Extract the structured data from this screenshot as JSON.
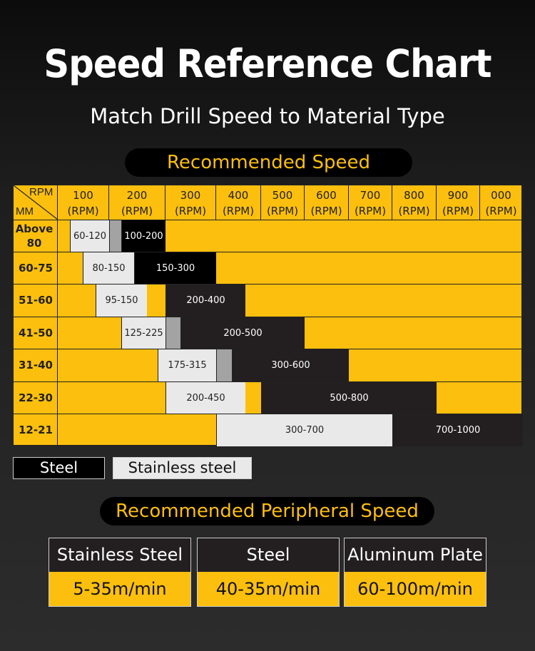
{
  "title": "Speed Reference Chart",
  "subtitle": "Match Drill Speed to Material Type",
  "section1": "Recommended Speed",
  "section2": "Recommended Peripheral Speed",
  "colors": {
    "accent": "#fcbf0d",
    "steel": "#000000",
    "stainless": "#e9e9e9"
  },
  "chart_data": {
    "type": "table",
    "corner": {
      "top": "RPM",
      "bottom": "MM"
    },
    "columns": [
      {
        "v": "100",
        "u": "(RPM)"
      },
      {
        "v": "200",
        "u": "(RPM)"
      },
      {
        "v": "300",
        "u": "(RPM)"
      },
      {
        "v": "400",
        "u": "(RPM)"
      },
      {
        "v": "500",
        "u": "(RPM)"
      },
      {
        "v": "600",
        "u": "(RPM)"
      },
      {
        "v": "700",
        "u": "(RPM)"
      },
      {
        "v": "800",
        "u": "(RPM)"
      },
      {
        "v": "900",
        "u": "(RPM)"
      },
      {
        "v": "000",
        "u": "(RPM)"
      }
    ],
    "rows": [
      {
        "mm": "Above 80",
        "segments": [
          {
            "label": "60-120",
            "material": "stainless"
          },
          {
            "label": "",
            "material": "overlap"
          },
          {
            "label": "100-200",
            "material": "steel"
          }
        ]
      },
      {
        "mm": "60-75",
        "segments": [
          {
            "label": "80-150",
            "material": "stainless"
          },
          {
            "label": "150-300",
            "material": "steel"
          }
        ]
      },
      {
        "mm": "51-60",
        "segments": [
          {
            "label": "95-150",
            "material": "stainless"
          },
          {
            "label": "200-400",
            "material": "steel"
          }
        ]
      },
      {
        "mm": "41-50",
        "segments": [
          {
            "label": "125-225",
            "material": "stainless"
          },
          {
            "label": "",
            "material": "overlap"
          },
          {
            "label": "200-500",
            "material": "steel"
          }
        ]
      },
      {
        "mm": "31-40",
        "segments": [
          {
            "label": "175-315",
            "material": "stainless"
          },
          {
            "label": "",
            "material": "overlap"
          },
          {
            "label": "300-600",
            "material": "steel"
          }
        ]
      },
      {
        "mm": "22-30",
        "segments": [
          {
            "label": "200-450",
            "material": "stainless"
          },
          {
            "label": "500-800",
            "material": "steel"
          }
        ]
      },
      {
        "mm": "12-21",
        "segments": [
          {
            "label": "300-700",
            "material": "stainless"
          },
          {
            "label": "700-1000",
            "material": "steel"
          }
        ]
      }
    ]
  },
  "legend": {
    "steel": "Steel",
    "stainless": "Stainless steel"
  },
  "peripheral": [
    {
      "material": "Stainless Steel",
      "speed": "5-35m/min"
    },
    {
      "material": "Steel",
      "speed": "40-35m/min"
    },
    {
      "material": "Aluminum Plate",
      "speed": "60-100m/min"
    }
  ]
}
